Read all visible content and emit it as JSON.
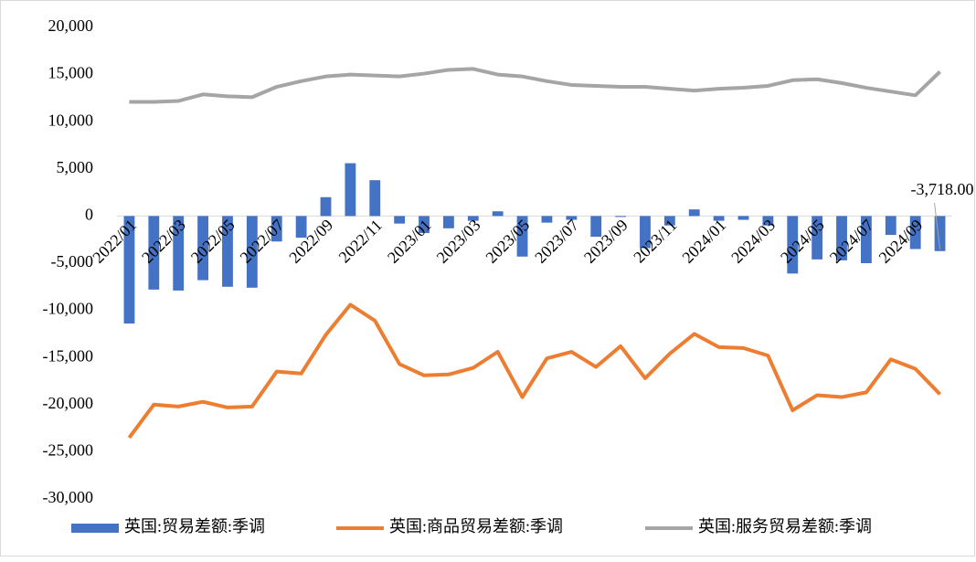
{
  "chart_data": {
    "type": "bar-line",
    "categories": [
      "2022/01",
      null,
      "2022/03",
      null,
      "2022/05",
      null,
      "2022/07",
      null,
      "2022/09",
      null,
      "2022/11",
      null,
      "2023/01",
      null,
      "2023/03",
      null,
      "2023/05",
      null,
      "2023/07",
      null,
      "2023/09",
      null,
      "2023/11",
      null,
      "2024/01",
      null,
      "2024/03",
      null,
      "2024/05",
      null,
      "2024/07",
      null,
      "2024/09",
      null
    ],
    "series": [
      {
        "name": "英国:贸易差额:季调",
        "type": "bar",
        "color": "#4472c4",
        "values": [
          -11400,
          -7800,
          -7900,
          -6800,
          -7500,
          -7600,
          -2700,
          -2300,
          2000,
          5600,
          3800,
          -800,
          -1800,
          -1300,
          -500,
          500,
          -4300,
          -700,
          -400,
          -2200,
          -100,
          -3400,
          -1000,
          700,
          -500,
          -400,
          -1000,
          -6100,
          -4600,
          -4700,
          -5000,
          -2000,
          -3500,
          -3718
        ],
        "value_labels": [
          null,
          null,
          null,
          null,
          null,
          null,
          null,
          null,
          null,
          null,
          null,
          null,
          null,
          null,
          null,
          null,
          null,
          null,
          null,
          null,
          null,
          null,
          null,
          null,
          null,
          null,
          null,
          null,
          null,
          null,
          null,
          null,
          null,
          "-3,718.00"
        ]
      },
      {
        "name": "英国:商品贸易差额:季调",
        "type": "line",
        "color": "#ed7d31",
        "values": [
          -23500,
          -20000,
          -20200,
          -19700,
          -20300,
          -20200,
          -16500,
          -16700,
          -12600,
          -9400,
          -11100,
          -15700,
          -16900,
          -16800,
          -16100,
          -14400,
          -19200,
          -15100,
          -14400,
          -16000,
          -13800,
          -17200,
          -14600,
          -12500,
          -13900,
          -14000,
          -14800,
          -20600,
          -19000,
          -19200,
          -18700,
          -15200,
          -16200,
          -18900
        ]
      },
      {
        "name": "英国:服务贸易差额:季调",
        "type": "line",
        "color": "#a5a5a5",
        "values": [
          12100,
          12100,
          12200,
          12900,
          12700,
          12600,
          13700,
          14300,
          14800,
          15000,
          14900,
          14800,
          15100,
          15500,
          15600,
          15000,
          14800,
          14300,
          13900,
          13800,
          13700,
          13700,
          13500,
          13300,
          13500,
          13600,
          13800,
          14400,
          14500,
          14100,
          13600,
          13200,
          12800,
          15300
        ]
      }
    ],
    "ylim": [
      -30000,
      20000
    ],
    "yticks": [
      {
        "value": -30000,
        "label": "-30,000"
      },
      {
        "value": -25000,
        "label": "-25,000"
      },
      {
        "value": -20000,
        "label": "-20,000"
      },
      {
        "value": -15000,
        "label": "-15,000"
      },
      {
        "value": -10000,
        "label": "-10,000"
      },
      {
        "value": -5000,
        "label": "-5,000"
      },
      0,
      {
        "value": 5000,
        "label": "5,000"
      },
      {
        "value": 10000,
        "label": "10,000"
      },
      {
        "value": 15000,
        "label": "15,000"
      },
      {
        "value": 20000,
        "label": "20,000"
      }
    ],
    "grid": false,
    "legend": "bottom"
  }
}
